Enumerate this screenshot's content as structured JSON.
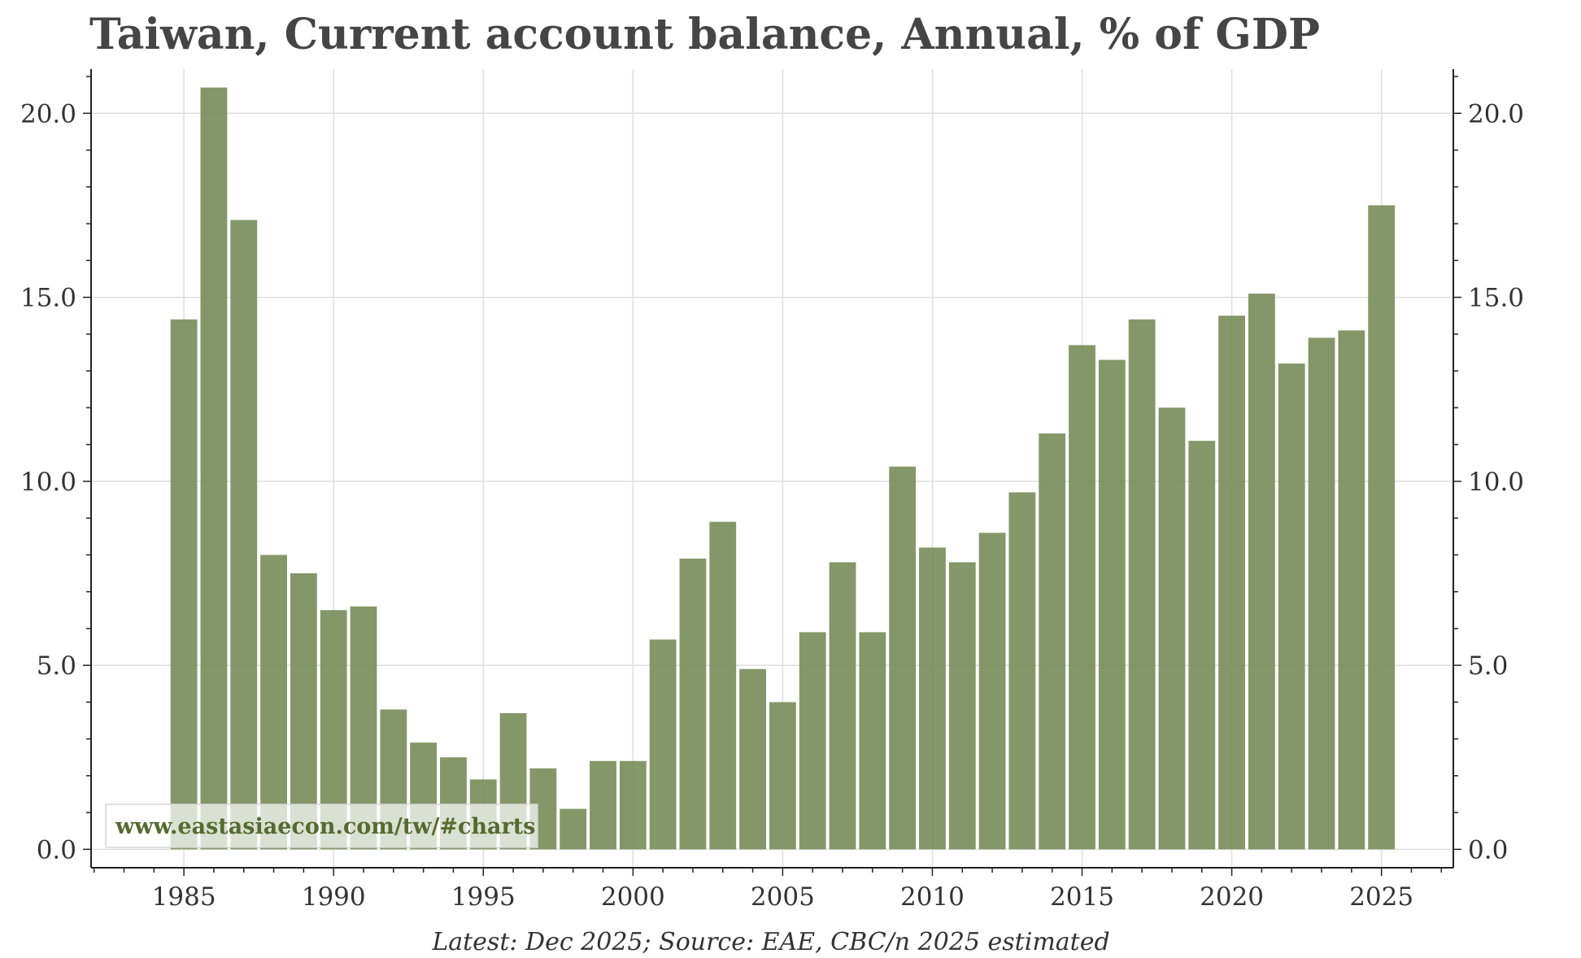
{
  "chart_data": {
    "type": "bar",
    "title": "Taiwan, Current account balance, Annual, % of GDP",
    "xlabel": "",
    "ylabel": "",
    "x": [
      1985,
      1986,
      1987,
      1988,
      1989,
      1990,
      1991,
      1992,
      1993,
      1994,
      1995,
      1996,
      1997,
      1998,
      1999,
      2000,
      2001,
      2002,
      2003,
      2004,
      2005,
      2006,
      2007,
      2008,
      2009,
      2010,
      2011,
      2012,
      2013,
      2014,
      2015,
      2016,
      2017,
      2018,
      2019,
      2020,
      2021,
      2022,
      2023,
      2024,
      2025
    ],
    "values": [
      14.4,
      20.7,
      17.1,
      8.0,
      7.5,
      6.5,
      6.6,
      3.8,
      2.9,
      2.5,
      1.9,
      3.7,
      2.2,
      1.1,
      2.4,
      2.4,
      5.7,
      7.9,
      8.9,
      4.9,
      4.0,
      5.9,
      7.8,
      5.9,
      10.4,
      8.2,
      7.8,
      8.6,
      9.7,
      11.3,
      13.7,
      13.3,
      14.4,
      12.0,
      11.1,
      14.5,
      15.1,
      13.2,
      13.9,
      14.1,
      17.5
    ],
    "xticks": [
      "1985",
      "1990",
      "1995",
      "2000",
      "2005",
      "2010",
      "2015",
      "2020",
      "2025"
    ],
    "yticks": [
      "0.0",
      "5.0",
      "10.0",
      "15.0",
      "20.0"
    ],
    "xlim": [
      1981.9,
      2027.4
    ],
    "ylim": [
      -0.5,
      21.2
    ],
    "grid": true,
    "bar_color": "#778c58",
    "source": "Latest: Dec 2025; Source: EAE, CBC/n 2025 estimated",
    "watermark": "www.eastasiaecon.com/tw/#charts"
  }
}
